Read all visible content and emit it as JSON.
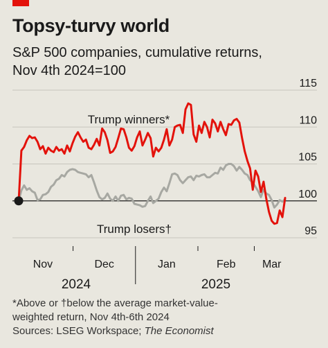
{
  "header": {
    "title": "Topsy-turvy world",
    "subtitle_line1": "S&P 500 companies, cumulative returns,",
    "subtitle_line2": "Nov 4th 2024=100"
  },
  "footnote": {
    "line1": "*Above or †below the average market-value-",
    "line2": "weighted return, Nov 4th-6th 2024",
    "line3_prefix": "Sources: LSEG Workspace; ",
    "line3_italic": "The Economist"
  },
  "colors": {
    "winners": "#e3120b",
    "losers": "#a7a8a2",
    "baseline": "#1a1a1a",
    "grid": "#c7c5bd",
    "background": "#e9e7df",
    "accent": "#e3120b"
  },
  "chart_data": {
    "type": "line",
    "x_start": "2024-11-04",
    "y_ticks": [
      95,
      100,
      105,
      110,
      115
    ],
    "ylim": [
      95,
      115
    ],
    "x_tick_labels": [
      "Nov",
      "Dec",
      "Jan",
      "Feb",
      "Mar"
    ],
    "year_labels": [
      "2024",
      "2025"
    ],
    "series": [
      {
        "name": "Trump winners*",
        "values": [
          100,
          106.8,
          107.3,
          108.2,
          108.8,
          108.5,
          108.6,
          108.0,
          107.0,
          107.4,
          106.4,
          107.2,
          106.8,
          106.6,
          107.3,
          106.8,
          107.0,
          106.4,
          107.5,
          106.7,
          107.8,
          108.7,
          109.3,
          108.6,
          108.0,
          108.3,
          107.2,
          107.0,
          107.6,
          108.4,
          107.5,
          109.8,
          109.3,
          108.2,
          106.5,
          106.7,
          107.3,
          108.5,
          109.8,
          109.7,
          108.6,
          107.2,
          106.8,
          107.4,
          108.6,
          109.4,
          107.5,
          108.3,
          109.2,
          108.5,
          106.0,
          107.2,
          106.7,
          107.2,
          108.3,
          109.7,
          107.5,
          108.3,
          110.0,
          110.2,
          110.3,
          109.2,
          112.4,
          113.2,
          113.0,
          109.0,
          108.0,
          110.2,
          109.2,
          110.7,
          110.0,
          108.6,
          111.0,
          110.5,
          109.4,
          110.7,
          109.7,
          108.9,
          110.4,
          110.3,
          110.9,
          111.1,
          110.6,
          108.5,
          106.7,
          105.4,
          104.4,
          101.5,
          104.1,
          103.3,
          101.2,
          102.6,
          100.3,
          98.5,
          97.3,
          96.9,
          97.0,
          98.7,
          97.8,
          100.4
        ]
      },
      {
        "name": "Trump losers†",
        "values": [
          100,
          101.4,
          102.1,
          101.5,
          101.7,
          101.3,
          101.1,
          100.1,
          100.2,
          100.8,
          100.9,
          101.2,
          101.9,
          102.2,
          102.8,
          103.0,
          103.5,
          103.3,
          103.9,
          104.2,
          104.3,
          104.2,
          103.9,
          103.8,
          103.7,
          103.6,
          103.2,
          103.5,
          102.5,
          101.4,
          100.5,
          100.2,
          100.4,
          101.0,
          100.3,
          100.0,
          100.6,
          100.0,
          100.7,
          100.8,
          100.2,
          100.4,
          100.3,
          99.6,
          99.5,
          99.4,
          99.2,
          99.3,
          100.0,
          100.6,
          99.7,
          100.0,
          100.3,
          101.2,
          101.8,
          101.3,
          102.4,
          103.6,
          103.7,
          103.5,
          102.8,
          102.4,
          102.8,
          103.2,
          103.3,
          102.8,
          103.4,
          103.3,
          103.5,
          103.6,
          103.2,
          103.2,
          103.5,
          103.8,
          103.7,
          104.5,
          104.2,
          104.8,
          105.0,
          105.0,
          104.7,
          104.1,
          104.6,
          104.2,
          103.7,
          103.5,
          102.8,
          102.5,
          101.9,
          101.3,
          100.5,
          101.5,
          101.0,
          100.8,
          100.1,
          99.1,
          99.5,
          100.1,
          99.9,
          100.2
        ]
      }
    ]
  }
}
